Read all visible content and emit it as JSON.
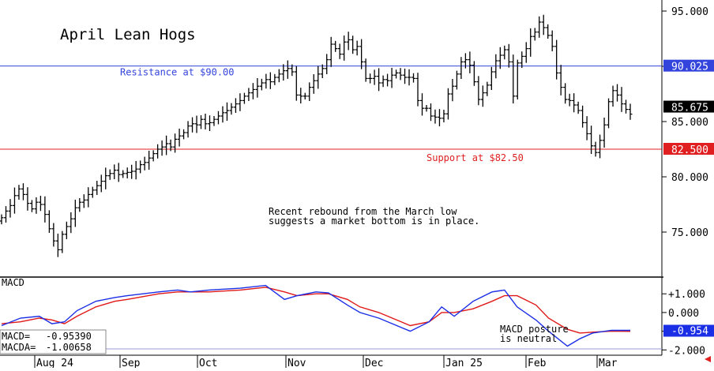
{
  "chart_data": {
    "type": "ohlc",
    "title": "April Lean Hogs",
    "price_axis": {
      "ylim": [
        71.0,
        96.0
      ],
      "ticks": [
        "95.000",
        "90.000",
        "85.000",
        "80.000",
        "75.000"
      ],
      "tick_values": [
        95,
        90,
        85,
        80,
        75
      ]
    },
    "x_labels": [
      "Aug 24",
      "Sep",
      "Oct",
      "Nov",
      "Dec",
      "Jan 25",
      "Feb",
      "Mar"
    ],
    "resistance": {
      "value": 90.025,
      "label": "Resistance at $90.00",
      "axis_label": "90.025",
      "color": "#3344dd"
    },
    "support": {
      "value": 82.5,
      "label": "Support at $82.50",
      "axis_label": "82.500",
      "color": "#e02020"
    },
    "last_price_label": "85.675",
    "annotation_lines": [
      "Recent rebound from the March low",
      "suggests a market bottom is in place."
    ],
    "ohlc_closes": [
      76.3,
      76.9,
      77.4,
      78.3,
      78.9,
      78.4,
      77.6,
      77.1,
      77.7,
      77.5,
      76.6,
      75.3,
      74.2,
      73.4,
      74.8,
      75.5,
      76.2,
      77.2,
      77.7,
      77.9,
      78.4,
      78.8,
      79.2,
      79.6,
      80.1,
      80.3,
      80.6,
      80.2,
      80.3,
      80.4,
      80.5,
      80.7,
      81.1,
      81.3,
      81.7,
      82.1,
      82.5,
      82.7,
      83.0,
      82.7,
      83.4,
      83.7,
      84.0,
      84.6,
      84.8,
      84.7,
      85.2,
      84.8,
      84.9,
      85.2,
      85.5,
      85.8,
      86.0,
      86.3,
      86.6,
      86.9,
      87.3,
      87.6,
      87.9,
      88.2,
      88.5,
      88.8,
      88.6,
      89.0,
      89.3,
      89.6,
      89.8,
      89.5,
      87.4,
      87.3,
      87.3,
      88.1,
      88.7,
      89.3,
      89.8,
      90.6,
      92.0,
      91.6,
      91.1,
      92.2,
      92.4,
      91.5,
      91.8,
      90.4,
      88.9,
      88.9,
      89.1,
      88.5,
      88.8,
      88.7,
      89.2,
      89.4,
      89.2,
      89.0,
      89.0,
      88.9,
      86.9,
      86.2,
      86.2,
      85.5,
      85.4,
      85.3,
      85.7,
      87.5,
      88.2,
      89.3,
      90.4,
      90.6,
      90.1,
      88.6,
      87.0,
      87.6,
      88.3,
      89.5,
      90.5,
      91.0,
      91.5,
      90.4,
      87.3,
      90.3,
      90.9,
      91.6,
      92.7,
      93.1,
      94.0,
      93.5,
      92.8,
      91.8,
      89.4,
      88.1,
      87.0,
      86.9,
      86.5,
      86.0,
      84.9,
      83.9,
      82.8,
      82.2,
      83.3,
      84.7,
      86.8,
      87.8,
      87.4,
      86.6,
      86.1,
      85.675
    ],
    "macd_axis": {
      "ylim": [
        -2.2,
        1.6
      ],
      "ticks": [
        "+1.000",
        "0.000",
        "-1.000",
        "-2.000"
      ],
      "tick_values": [
        1,
        0,
        -1,
        -2
      ]
    },
    "macd_label": "MACD",
    "macd_readout": {
      "macd_label": "MACD=",
      "macd_value": "-0.95390",
      "macda_label": "MACDA=",
      "macda_value": "-1.00658"
    },
    "macd_last_label": "-0.954",
    "macd_note_lines": [
      "MACD posture",
      "is neutral"
    ],
    "macd_series": {
      "x": [
        0,
        0.03,
        0.06,
        0.08,
        0.1,
        0.12,
        0.15,
        0.18,
        0.2,
        0.25,
        0.28,
        0.3,
        0.33,
        0.38,
        0.42,
        0.45,
        0.47,
        0.5,
        0.52,
        0.55,
        0.57,
        0.6,
        0.65,
        0.68,
        0.7,
        0.72,
        0.75,
        0.78,
        0.8,
        0.82,
        0.85,
        0.87,
        0.9,
        0.92,
        0.94,
        0.97,
        1.0
      ],
      "macd": [
        -0.7,
        -0.3,
        -0.2,
        -0.6,
        -0.5,
        0.1,
        0.6,
        0.8,
        0.9,
        1.1,
        1.2,
        1.1,
        1.2,
        1.3,
        1.45,
        0.7,
        0.9,
        1.1,
        1.05,
        0.4,
        0.0,
        -0.3,
        -1.0,
        -0.5,
        0.3,
        -0.2,
        0.6,
        1.1,
        1.2,
        0.3,
        -0.4,
        -1.0,
        -1.8,
        -1.4,
        -1.1,
        -0.95,
        -0.954
      ],
      "signal": [
        -0.6,
        -0.5,
        -0.3,
        -0.4,
        -0.6,
        -0.2,
        0.3,
        0.6,
        0.7,
        1.0,
        1.1,
        1.1,
        1.1,
        1.2,
        1.35,
        1.1,
        0.9,
        1.0,
        1.0,
        0.7,
        0.3,
        0.0,
        -0.7,
        -0.5,
        0.0,
        0.0,
        0.2,
        0.6,
        0.9,
        0.9,
        0.4,
        -0.3,
        -0.9,
        -1.1,
        -1.05,
        -1.0,
        -1.007
      ],
      "macd_color": "#1a2ee6",
      "signal_color": "#e01818"
    }
  },
  "colors": {
    "bar": "#000000",
    "accent_red": "#e02020",
    "accent_blue": "#3344dd"
  }
}
